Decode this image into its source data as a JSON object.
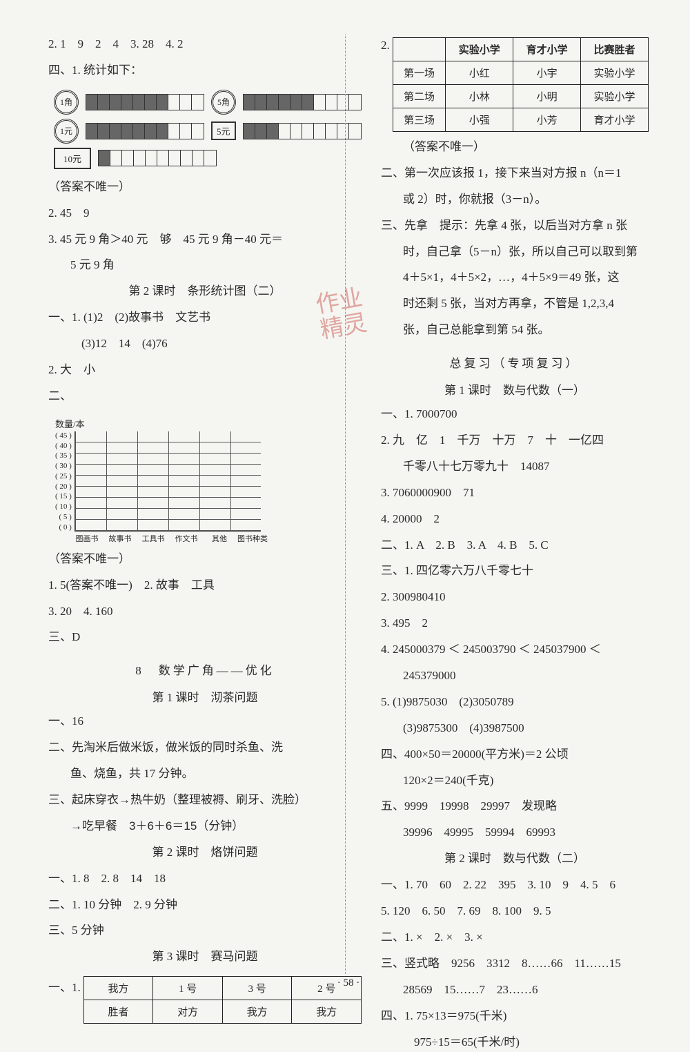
{
  "left": {
    "l1": "2. 1　9　2　4　3. 28　4. 2",
    "l2": "四、1. 统计如下：",
    "coins": {
      "row1a_label": "1角",
      "row1b_label": "5角",
      "row2a_label": "1元",
      "row2b_label": "5元",
      "row3_label": "10元",
      "row1a_fill": 7,
      "row1a_total": 10,
      "row1b_fill": 6,
      "row1b_total": 10,
      "row2a_fill": 7,
      "row2a_total": 10,
      "row2b_fill": 3,
      "row2b_total": 10,
      "row3_fill": 1,
      "row3_total": 10
    },
    "l3": "（答案不唯一）",
    "l4": "2. 45　9",
    "l5": "3. 45 元 9 角＞40 元　够　45 元 9 角－40 元＝",
    "l5b": "5 元 9 角",
    "sec1": "第 2 课时　条形统计图（二）",
    "l6": "一、1. (1)2　(2)故事书　文艺书",
    "l7": "(3)12　14　(4)76",
    "l8": "2. 大　小",
    "l9": "二、",
    "chart": {
      "ylabel": "数量/本",
      "yticks": [
        "( 45 )",
        "( 40 )",
        "( 35 )",
        "( 30 )",
        "( 25 )",
        "( 20 )",
        "( 15 )",
        "( 10 )",
        "(  5 )",
        "(  0 )"
      ],
      "xcats": [
        "图画书",
        "故事书",
        "工具书",
        "作文书",
        "其他",
        "图书种类"
      ]
    },
    "l10": "（答案不唯一）",
    "l11": "1. 5(答案不唯一)　2. 故事　工具",
    "l12": "3. 20　4. 160",
    "l13": "三、D",
    "sec2": "8　数学广角——优化",
    "sec2sub": "第 1 课时　沏茶问题",
    "l14": "一、16",
    "l15": "二、先淘米后做米饭，做米饭的同时杀鱼、洗",
    "l15b": "鱼、烧鱼，共 17 分钟。",
    "l16": "三、起床穿衣→热牛奶（整理被褥、刷牙、洗脸）",
    "l16b": "→吃早餐　3＋6＋6＝15（分钟）",
    "sec3": "第 2 课时　烙饼问题",
    "l17": "一、1. 8　2. 8　14　18",
    "l18": "二、1. 10 分钟　2. 9 分钟",
    "l19": "三、5 分钟",
    "sec4": "第 3 课时　赛马问题",
    "t1_lead": "一、1.",
    "t1": {
      "r1": [
        "我方",
        "1 号",
        "3 号",
        "2 号"
      ],
      "r2": [
        "胜者",
        "对方",
        "我方",
        "我方"
      ]
    }
  },
  "right": {
    "t2_lead": "2.",
    "t2": {
      "head": [
        "",
        "实验小学",
        "育才小学",
        "比赛胜者"
      ],
      "rows": [
        [
          "第一场",
          "小红",
          "小宇",
          "实验小学"
        ],
        [
          "第二场",
          "小林",
          "小明",
          "实验小学"
        ],
        [
          "第三场",
          "小强",
          "小芳",
          "育才小学"
        ]
      ]
    },
    "r1": "（答案不唯一）",
    "r2": "二、第一次应该报 1，接下来当对方报 n（n＝1",
    "r2b": "或 2）时，你就报（3－n）。",
    "r3": "三、先拿　提示：先拿 4 张，以后当对方拿 n 张",
    "r3b": "时，自己拿（5－n）张，所以自己可以取到第",
    "r3c": "4＋5×1，4＋5×2，…，4＋5×9＝49 张，这",
    "r3d": "时还剩 5 张，当对方再拿，不管是 1,2,3,4",
    "r3e": "张，自己总能拿到第 54 张。",
    "sec5": "总复习（专项复习）",
    "sec5sub": "第 1 课时　数与代数（一）",
    "r4": "一、1. 7000700",
    "r5": "2. 九　亿　1　千万　十万　7　十　一亿四",
    "r5b": "千零八十七万零九十　14087",
    "r6": "3. 7060000900　71",
    "r7": "4. 20000　2",
    "r8": "二、1. A　2. B　3. A　4. B　5. C",
    "r9": "三、1. 四亿零六万八千零七十",
    "r10": "2. 300980410",
    "r11": "3. 495　2",
    "r12": "4. 245000379 ＜ 245003790 ＜ 245037900 ＜",
    "r12b": "245379000",
    "r13": "5. (1)9875030　(2)3050789",
    "r13b": "(3)9875300　(4)3987500",
    "r14": "四、400×50＝20000(平方米)＝2 公顷",
    "r14b": "120×2＝240(千克)",
    "r15": "五、9999　19998　29997　发现略",
    "r15b": "39996　49995　59994　69993",
    "sec6": "第 2 课时　数与代数（二）",
    "r16": "一、1. 70　60　2. 22　395　3. 10　9　4. 5　6",
    "r17": "5. 120　6. 50　7. 69　8. 100　9. 5",
    "r18": "二、1. ×　2. ×　3. ×",
    "r19": "三、竖式略　9256　3312　8……66　11……15",
    "r19b": "28569　15……7　23……6",
    "r20": "四、1. 75×13＝975(千米)",
    "r20b": "975÷15＝65(千米/时)"
  },
  "stamp_text": "作业\n精灵",
  "page_num": "· 58 ·"
}
